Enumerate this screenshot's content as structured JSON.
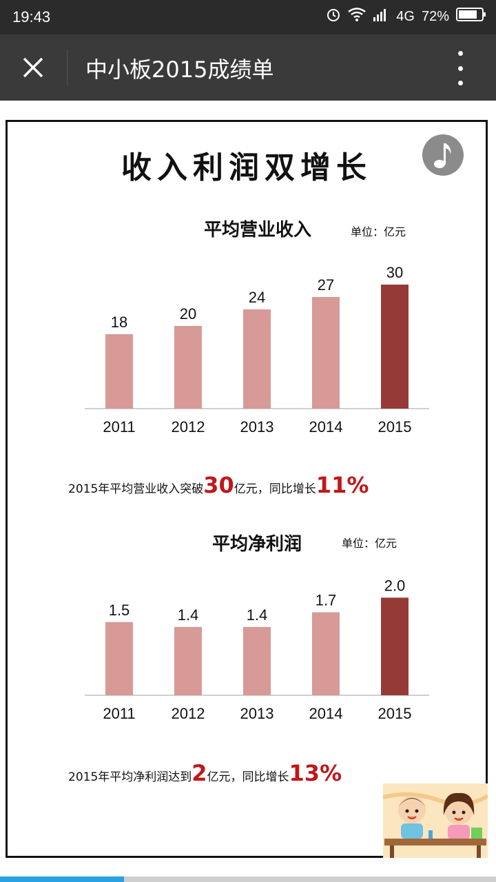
{
  "status": {
    "time": "19:43",
    "network": "4G",
    "battery": "72%"
  },
  "nav": {
    "title": "中小板2015成绩单"
  },
  "page": {
    "heading": "收入利润双增长",
    "revenue": {
      "title": "平均营业收入",
      "unit": "单位：亿元",
      "note": {
        "pre": "2015年平均营业收入突破",
        "num1": "30",
        "mid": "亿元，同比增长",
        "num2": "11%"
      }
    },
    "profit": {
      "title": "平均净利润",
      "unit": "单位：亿元",
      "note": {
        "pre": "2015年平均净利润达到",
        "num1": "2",
        "mid": "亿元，同比增长",
        "num2": "13%"
      }
    }
  },
  "colors": {
    "bar": "#d79a96",
    "highlight": "#963a38",
    "accent": "#c0181b"
  },
  "progress": {
    "loaded_fraction": 0.25
  },
  "chart_data": [
    {
      "type": "bar",
      "title": "平均营业收入",
      "categories": [
        "2011",
        "2012",
        "2013",
        "2014",
        "2015"
      ],
      "values": [
        18,
        20,
        24,
        27,
        30
      ],
      "value_labels": [
        "18",
        "20",
        "24",
        "27",
        "30"
      ],
      "ylim": [
        0,
        35
      ],
      "highlight_index": 4
    },
    {
      "type": "bar",
      "title": "平均净利润",
      "categories": [
        "2011",
        "2012",
        "2013",
        "2014",
        "2015"
      ],
      "values": [
        1.5,
        1.4,
        1.4,
        1.7,
        2.0
      ],
      "value_labels": [
        "1.5",
        "1.4",
        "1.4",
        "1.7",
        "2.0"
      ],
      "ylim": [
        0,
        2.4
      ],
      "highlight_index": 4
    }
  ]
}
